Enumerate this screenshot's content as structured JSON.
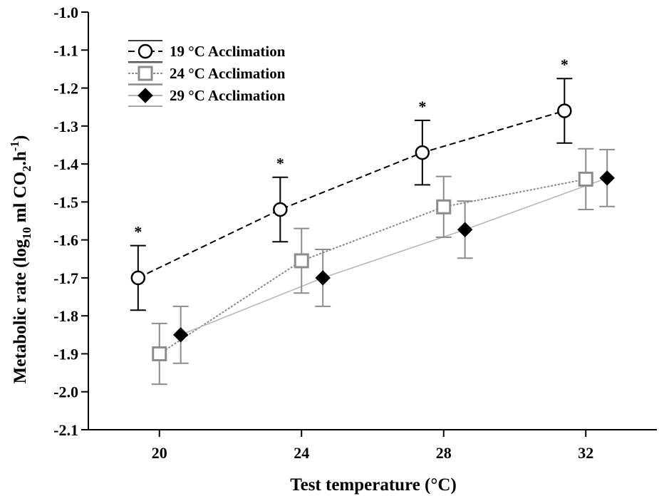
{
  "chart_data": {
    "type": "line",
    "xlabel": "Test temperature (°C)",
    "ylabel": {
      "prefix": "Metabolic rate (log",
      "sub1": "10",
      "mid": " ml CO",
      "sub2": "2",
      "mid2": ".h",
      "sup": "-1",
      "suffix": ")"
    },
    "xlim": [
      18,
      34
    ],
    "ylim": [
      -2.1,
      -1.0
    ],
    "xticks": [
      20,
      24,
      28,
      32
    ],
    "yticks": [
      -2.1,
      -2.0,
      -1.9,
      -1.8,
      -1.7,
      -1.6,
      -1.5,
      -1.4,
      -1.3,
      -1.2,
      -1.1,
      -1.0
    ],
    "x": [
      20,
      24,
      28,
      32
    ],
    "grid": false,
    "legend_position": "top-left",
    "significance_marker": "*",
    "series": [
      {
        "name": "19 °C Acclimation",
        "marker": "open-circle",
        "line_style": "dashed",
        "color": "#000000",
        "offset_x": -0.6,
        "values": [
          -1.7,
          -1.52,
          -1.37,
          -1.26
        ],
        "error": [
          0.085,
          0.085,
          0.085,
          0.085
        ],
        "significant": [
          true,
          true,
          true,
          true
        ]
      },
      {
        "name": "24 °C Acclimation",
        "marker": "open-square",
        "line_style": "dotted",
        "color": "#8c8c8c",
        "offset_x": 0,
        "values": [
          -1.9,
          -1.655,
          -1.513,
          -1.44
        ],
        "error": [
          0.08,
          0.085,
          0.08,
          0.08
        ],
        "significant": [
          false,
          false,
          false,
          false
        ]
      },
      {
        "name": "29 °C Acclimation",
        "marker": "filled-diamond",
        "line_style": "solid",
        "color": "#000000",
        "line_color": "#b4b4b4",
        "offset_x": 0.6,
        "values": [
          -1.85,
          -1.7,
          -1.573,
          -1.437
        ],
        "error": [
          0.075,
          0.075,
          0.075,
          0.075
        ],
        "significant": [
          false,
          false,
          false,
          false
        ]
      }
    ]
  }
}
